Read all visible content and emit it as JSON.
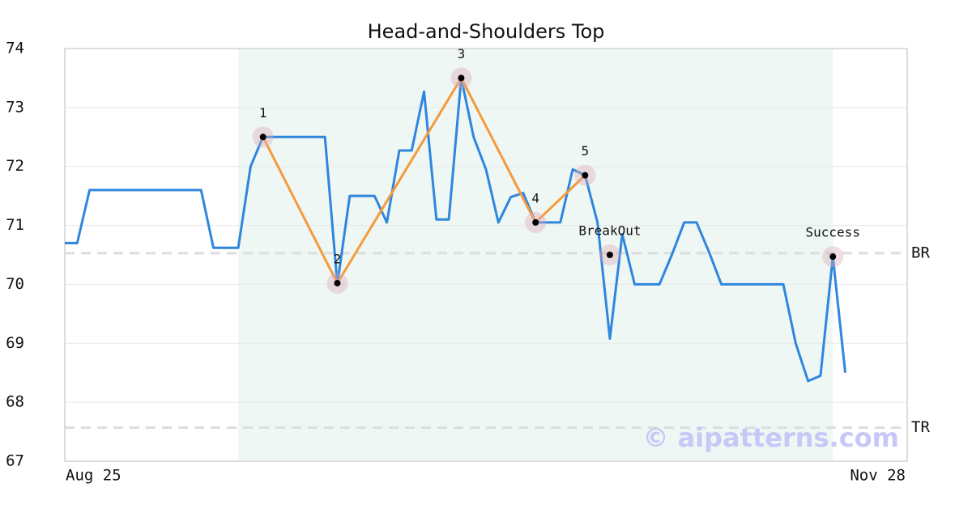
{
  "chart_data": {
    "type": "line",
    "title": "Head-and-Shoulders Top",
    "categories": [
      "Aug 25",
      null,
      null,
      null,
      null,
      null,
      null,
      null,
      null,
      null,
      null,
      null,
      null,
      null,
      null,
      null,
      null,
      null,
      null,
      null,
      null,
      null,
      null,
      null,
      null,
      null,
      null,
      null,
      null,
      null,
      null,
      null,
      null,
      null,
      null,
      null,
      null,
      null,
      null,
      null,
      null,
      null,
      null,
      null,
      null,
      null,
      null,
      null,
      null,
      null,
      null,
      null,
      null,
      null,
      null,
      null,
      null,
      null,
      null,
      null,
      null,
      null,
      null,
      null,
      null,
      null,
      null,
      null,
      "Nov 28"
    ],
    "values": [
      70.7,
      70.7,
      71.6,
      71.6,
      71.6,
      71.6,
      71.6,
      71.6,
      71.6,
      71.6,
      71.6,
      71.6,
      70.62,
      70.62,
      70.62,
      72.0,
      72.5,
      72.5,
      72.5,
      72.5,
      72.5,
      72.5,
      70.0,
      71.5,
      71.5,
      71.5,
      71.05,
      72.27,
      72.27,
      73.27,
      71.1,
      71.1,
      73.5,
      72.5,
      71.95,
      71.05,
      71.48,
      71.55,
      71.05,
      71.05,
      71.05,
      71.95,
      71.85,
      71.05,
      69.08,
      70.85,
      70.0,
      70.0,
      70.0,
      70.5,
      71.05,
      71.05,
      70.55,
      70.0,
      70.0,
      70.0,
      70.0,
      70.0,
      70.0,
      69.0,
      68.36,
      68.45,
      70.47,
      68.5,
      null,
      null,
      null,
      null,
      null
    ],
    "color": "#2e86de",
    "pattern_color": "#f59a3c",
    "pattern_points": [
      {
        "label": "1",
        "index": 16,
        "value": 72.5
      },
      {
        "label": "2",
        "index": 22,
        "value": 70.02
      },
      {
        "label": "3",
        "index": 32,
        "value": 73.5
      },
      {
        "label": "4",
        "index": 38,
        "value": 71.05
      },
      {
        "label": "5",
        "index": 42,
        "value": 71.85
      }
    ],
    "signal_points": [
      {
        "label": "BreakOut",
        "index": 44,
        "value": 70.5
      },
      {
        "label": "Success",
        "index": 62,
        "value": 70.47
      }
    ],
    "levels": [
      {
        "label": "BR",
        "value": 70.53
      },
      {
        "label": "TR",
        "value": 67.57
      }
    ],
    "highlight_range": [
      14,
      62
    ],
    "watermark": "© aipatterns.com",
    "ylim": [
      67,
      74
    ],
    "yticks": [
      67,
      68,
      69,
      70,
      71,
      72,
      73,
      74
    ],
    "grid": true
  }
}
